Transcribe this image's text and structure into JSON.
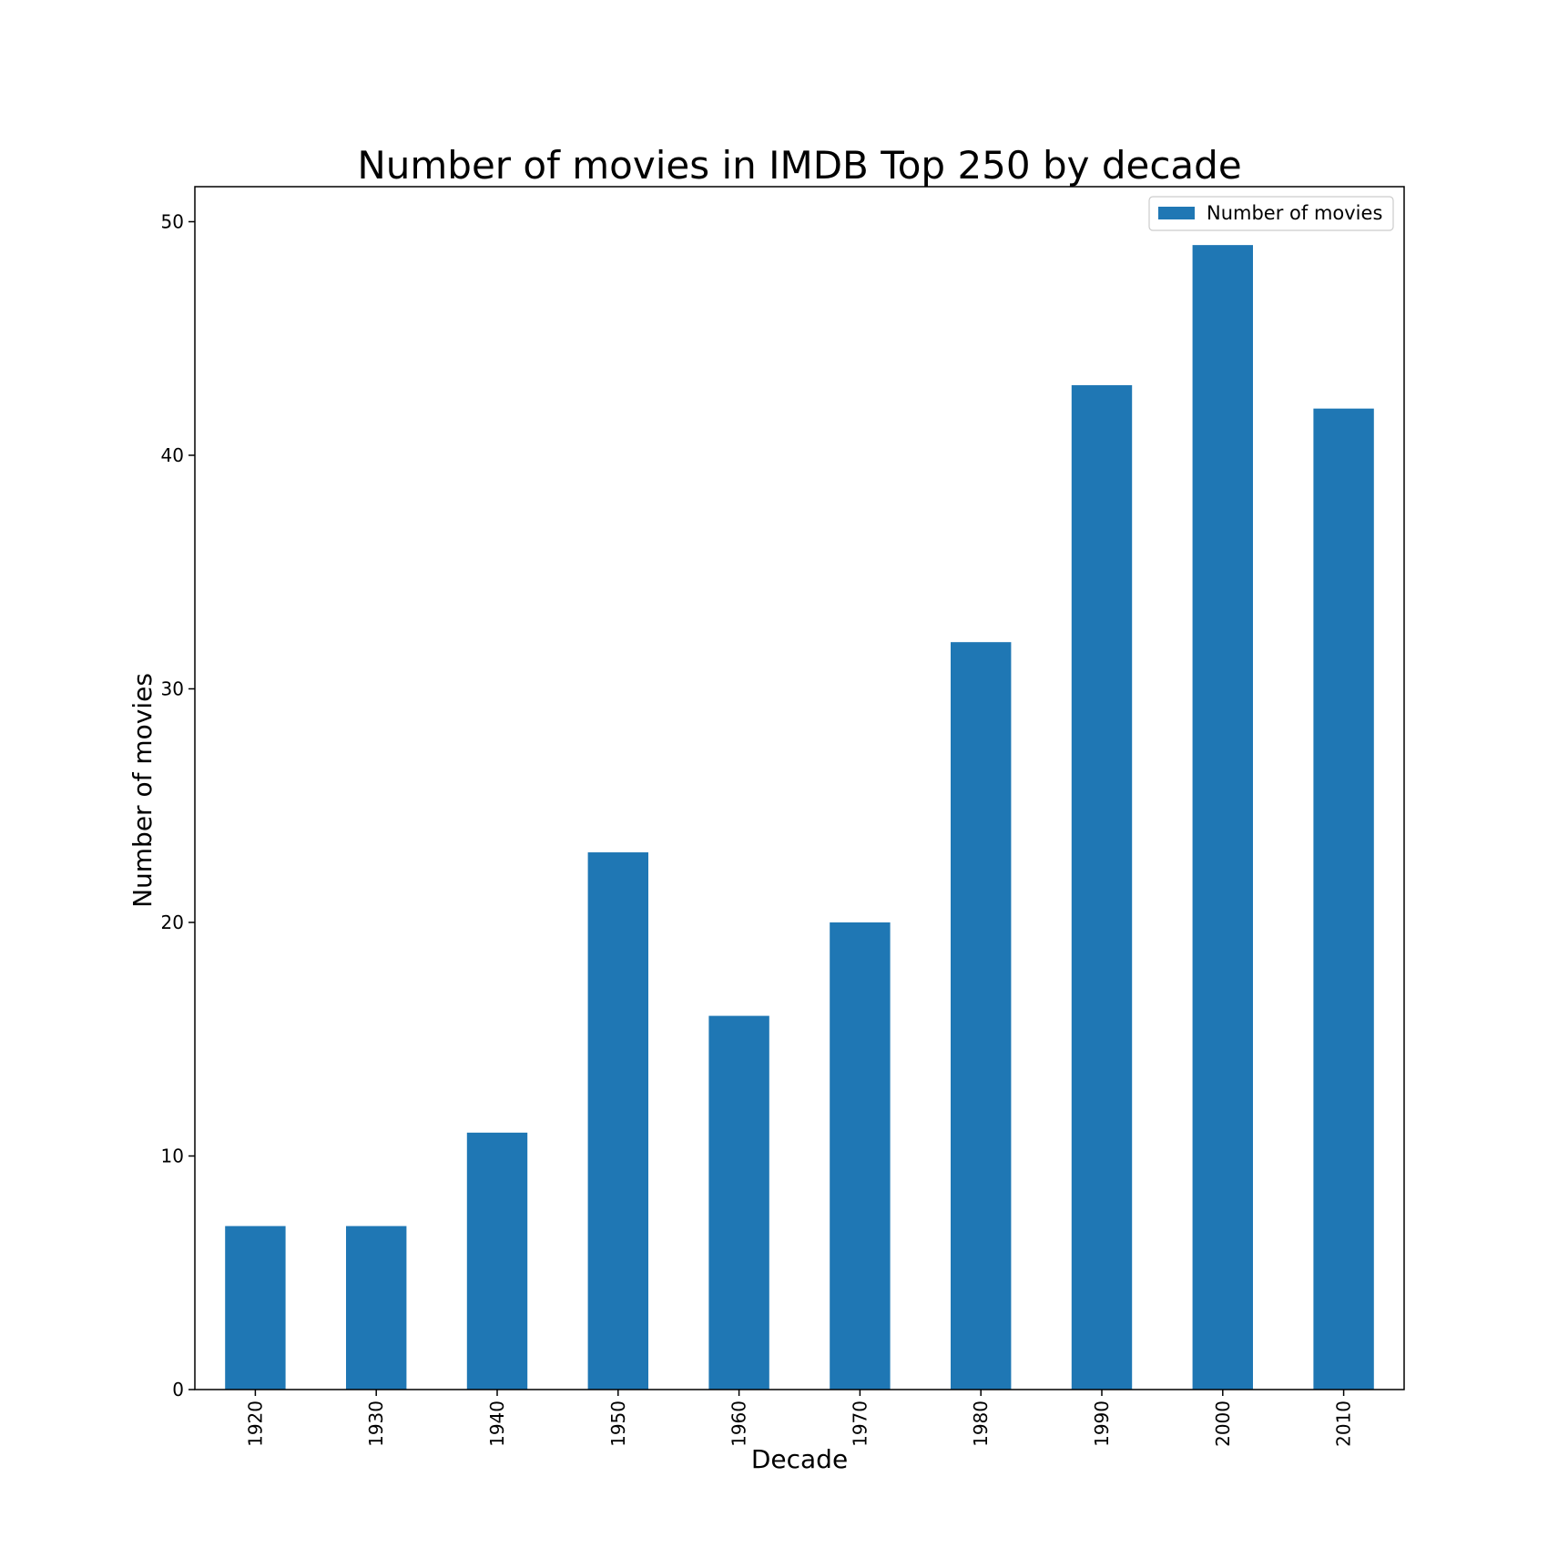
{
  "chart_data": {
    "type": "bar",
    "title": "Number of movies in IMDB Top 250 by decade",
    "xlabel": "Decade",
    "ylabel": "Number of movies",
    "categories": [
      "1920",
      "1930",
      "1940",
      "1950",
      "1960",
      "1970",
      "1980",
      "1990",
      "2000",
      "2010"
    ],
    "series": [
      {
        "name": "Number of movies",
        "values": [
          7,
          7,
          11,
          23,
          16,
          20,
          32,
          43,
          49,
          42
        ],
        "color": "#1f77b4"
      }
    ],
    "ylim": [
      0,
      51.5
    ],
    "yticks": [
      0,
      10,
      20,
      30,
      40,
      50
    ],
    "grid": false,
    "legend_position": "top-right",
    "xtick_rotation": "vertical"
  }
}
